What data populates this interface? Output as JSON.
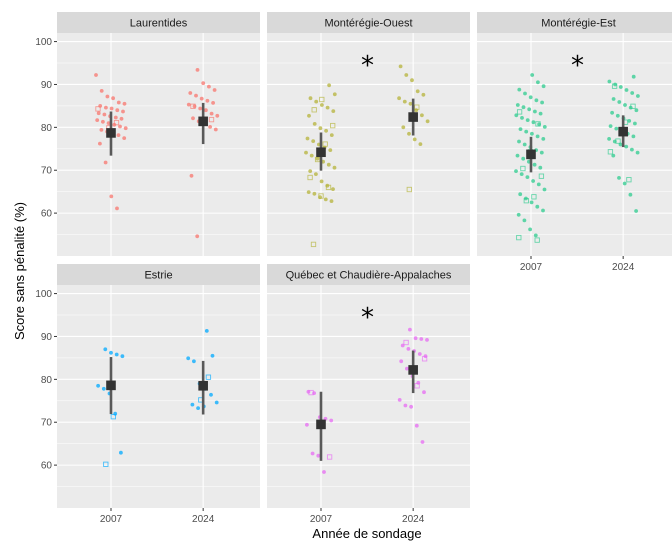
{
  "chart_data": {
    "type": "scatter",
    "xlabel": "Année de sondage",
    "ylabel": "Score sans pénalité (%)",
    "x_categories": [
      "2007",
      "2024"
    ],
    "y_ticks": [
      60,
      70,
      80,
      90,
      100
    ],
    "ylim": [
      50,
      102
    ],
    "grid": true,
    "legend": "none",
    "significance_marker": "*",
    "panels": [
      {
        "name": "Laurentides",
        "color": "#F8766D",
        "significant": false,
        "groups": [
          {
            "x": "2007",
            "mean": 78.7,
            "lo": 73.4,
            "hi": 83.7,
            "points": [
              92.2,
              88.5,
              87.2,
              86.8,
              85.8,
              85.5,
              85.0,
              84.6,
              84.4,
              84.0,
              83.7,
              83.3,
              83.0,
              82.6,
              82.3,
              82.0,
              81.7,
              81.3,
              81.0,
              80.6,
              80.2,
              79.8,
              79.4,
              79.0,
              78.6,
              78.2,
              77.5,
              76.2,
              71.8,
              63.9,
              61.1
            ],
            "hollow": [
              84.3,
              81.1,
              79.9
            ]
          },
          {
            "x": "2024",
            "mean": 81.4,
            "lo": 76.1,
            "hi": 85.7,
            "points": [
              93.4,
              90.3,
              89.5,
              88.7,
              88.0,
              87.4,
              86.7,
              86.2,
              85.7,
              85.3,
              84.9,
              84.4,
              84.0,
              83.2,
              82.7,
              82.1,
              81.4,
              80.8,
              80.1,
              79.5,
              68.7,
              54.6
            ],
            "hollow": [
              84.9,
              81.8
            ]
          }
        ]
      },
      {
        "name": "Montérégie-Ouest",
        "color": "#B5B33A",
        "significant": true,
        "groups": [
          {
            "x": "2007",
            "mean": 74.2,
            "lo": 69.9,
            "hi": 78.8,
            "points": [
              89.8,
              87.7,
              86.8,
              86.0,
              85.2,
              84.6,
              83.8,
              82.7,
              80.8,
              79.8,
              79.2,
              78.2,
              77.4,
              76.8,
              76.0,
              75.3,
              74.7,
              74.1,
              73.4,
              72.7,
              72.0,
              71.3,
              70.6,
              69.8,
              69.1,
              67.4,
              66.4,
              65.6,
              64.9,
              64.5,
              63.7,
              63.2,
              62.8
            ],
            "hollow": [
              86.5,
              84.1,
              80.4,
              76.1,
              72.5,
              68.3,
              66.0,
              64.0,
              52.7
            ]
          },
          {
            "x": "2024",
            "mean": 82.4,
            "lo": 78.1,
            "hi": 86.7,
            "points": [
              94.2,
              92.2,
              91.0,
              88.4,
              87.6,
              86.8,
              86.0,
              85.5,
              84.0,
              82.8,
              81.4,
              80.0,
              78.5,
              77.2,
              76.1
            ],
            "hollow": [
              84.7,
              65.5
            ]
          }
        ]
      },
      {
        "name": "Montérégie-Est",
        "color": "#2ECC8F",
        "significant": true,
        "groups": [
          {
            "x": "2007",
            "mean": 73.7,
            "lo": 69.5,
            "hi": 77.8,
            "points": [
              92.2,
              90.5,
              89.6,
              88.8,
              87.9,
              87.0,
              86.3,
              85.8,
              85.2,
              84.7,
              84.2,
              83.7,
              83.2,
              82.8,
              82.2,
              81.7,
              81.2,
              80.7,
              80.1,
              79.6,
              79.0,
              78.5,
              77.9,
              77.3,
              76.7,
              76.0,
              75.4,
              74.7,
              74.1,
              73.4,
              72.7,
              72.0,
              71.3,
              70.6,
              69.8,
              69.1,
              68.4,
              67.5,
              66.7,
              65.5,
              64.4,
              63.4,
              62.5,
              61.5,
              60.6,
              59.6,
              58.3,
              56.2,
              54.8
            ],
            "hollow": [
              83.6,
              80.8,
              74.3,
              70.4,
              68.6,
              63.8,
              62.9,
              54.3,
              53.7
            ]
          },
          {
            "x": "2024",
            "mean": 79.0,
            "lo": 75.4,
            "hi": 82.8,
            "points": [
              91.8,
              90.7,
              90.0,
              89.4,
              88.7,
              88.0,
              87.3,
              86.6,
              85.9,
              85.2,
              84.6,
              84.0,
              83.4,
              82.7,
              82.1,
              81.5,
              80.9,
              80.3,
              79.7,
              79.1,
              78.5,
              77.9,
              77.3,
              76.7,
              76.0,
              75.5,
              74.8,
              74.1,
              73.4,
              68.2,
              66.9,
              64.3,
              60.5
            ],
            "hollow": [
              89.6,
              84.9,
              81.2,
              76.8,
              74.3,
              67.8
            ]
          }
        ]
      },
      {
        "name": "Estrie",
        "color": "#00A9FF",
        "significant": false,
        "groups": [
          {
            "x": "2007",
            "mean": 78.6,
            "lo": 71.9,
            "hi": 85.2,
            "points": [
              87.0,
              86.2,
              85.8,
              85.4,
              78.5,
              77.8,
              76.7,
              72.0,
              62.9
            ],
            "hollow": [
              71.3,
              60.2
            ]
          },
          {
            "x": "2024",
            "mean": 78.5,
            "lo": 71.8,
            "hi": 84.3,
            "points": [
              91.3,
              85.5,
              84.9,
              84.2,
              79.0,
              77.8,
              76.4,
              74.6,
              74.1,
              73.3,
              73.7
            ],
            "hollow": [
              80.5,
              75.2
            ]
          }
        ]
      },
      {
        "name": "Québec et Chaudière-Appalaches",
        "color": "#E76BF3",
        "significant": true,
        "groups": [
          {
            "x": "2007",
            "mean": 69.5,
            "lo": 61.0,
            "hi": 77.1,
            "points": [
              77.1,
              76.8,
              71.2,
              70.8,
              70.4,
              69.4,
              62.7,
              62.2,
              58.4
            ],
            "hollow": [
              76.9,
              61.9
            ]
          },
          {
            "x": "2024",
            "mean": 82.2,
            "lo": 76.8,
            "hi": 86.7,
            "points": [
              91.6,
              89.6,
              89.4,
              89.2,
              87.9,
              87.1,
              86.6,
              85.9,
              85.4,
              84.2,
              82.5,
              80.7,
              79.2,
              77.0,
              75.2,
              73.9,
              73.6,
              69.2,
              65.4
            ],
            "hollow": [
              88.6,
              84.8,
              78.5
            ]
          }
        ]
      }
    ]
  }
}
